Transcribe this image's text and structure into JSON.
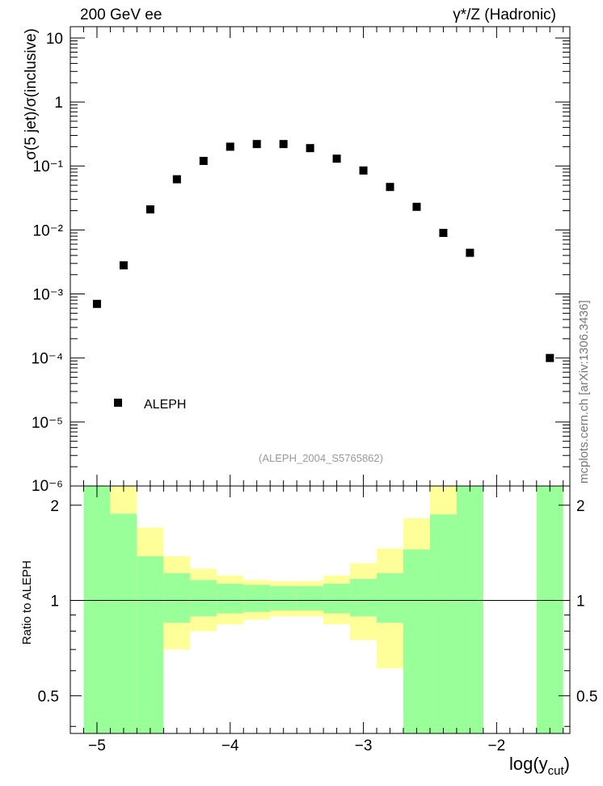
{
  "header": {
    "left": "200 GeV ee",
    "right": "γ*/Z (Hadronic)"
  },
  "side_label": "mcplots.cern.ch [arXiv:1306.3436]",
  "analysis_label": "(ALEPH_2004_S5765862)",
  "chart_data": [
    {
      "type": "scatter",
      "panel": "main",
      "ylabel": "σ(5 jet)/σ(inclusive)",
      "yscale": "log",
      "ylim": [
        1e-06,
        15
      ],
      "xlim": [
        -5.2,
        -1.45
      ],
      "y_ticklabels": [
        "10",
        "1",
        "10⁻¹",
        "10⁻²",
        "10⁻³",
        "10⁻⁴",
        "10⁻⁵",
        "10⁻⁶"
      ],
      "legend": {
        "entries": [
          "ALEPH"
        ],
        "placement": "bottom-left"
      },
      "marker_color": "#000000",
      "series": [
        {
          "name": "ALEPH",
          "x": [
            -5.0,
            -4.8,
            -4.6,
            -4.4,
            -4.2,
            -4.0,
            -3.8,
            -3.6,
            -3.4,
            -3.2,
            -3.0,
            -2.8,
            -2.6,
            -2.4,
            -2.2,
            -1.6
          ],
          "y": [
            0.0007,
            0.0028,
            0.021,
            0.062,
            0.12,
            0.2,
            0.22,
            0.22,
            0.19,
            0.13,
            0.085,
            0.047,
            0.023,
            0.009,
            0.0044,
            0.0001
          ]
        }
      ]
    },
    {
      "type": "area",
      "panel": "ratio",
      "ylabel": "Ratio to ALEPH",
      "xlabel": "log(y_cut)",
      "xlim": [
        -5.2,
        -1.45
      ],
      "ylim": [
        0.38,
        2.3
      ],
      "x_ticklabels": [
        "−5",
        "−4",
        "−3",
        "−2"
      ],
      "y_ticklabels": [
        "0.5",
        "1",
        "2"
      ],
      "reference_line": 1,
      "colors": {
        "inner": "#99ff99",
        "outer": "#ffff99"
      },
      "bins": [
        {
          "lo": -5.1,
          "hi": -4.9,
          "inner": [
            0.3,
            3.0
          ],
          "outer": [
            0.3,
            3.0
          ]
        },
        {
          "lo": -4.9,
          "hi": -4.7,
          "inner": [
            0.3,
            1.88
          ],
          "outer": [
            0.3,
            3.0
          ]
        },
        {
          "lo": -4.7,
          "hi": -4.5,
          "inner": [
            0.3,
            1.38
          ],
          "outer": [
            0.3,
            1.7
          ]
        },
        {
          "lo": -4.5,
          "hi": -4.3,
          "inner": [
            0.85,
            1.22
          ],
          "outer": [
            0.7,
            1.38
          ]
        },
        {
          "lo": -4.3,
          "hi": -4.1,
          "inner": [
            0.89,
            1.16
          ],
          "outer": [
            0.8,
            1.26
          ]
        },
        {
          "lo": -4.1,
          "hi": -3.9,
          "inner": [
            0.91,
            1.13
          ],
          "outer": [
            0.84,
            1.2
          ]
        },
        {
          "lo": -3.9,
          "hi": -3.7,
          "inner": [
            0.92,
            1.12
          ],
          "outer": [
            0.87,
            1.16
          ]
        },
        {
          "lo": -3.7,
          "hi": -3.5,
          "inner": [
            0.93,
            1.11
          ],
          "outer": [
            0.89,
            1.15
          ]
        },
        {
          "lo": -3.5,
          "hi": -3.3,
          "inner": [
            0.93,
            1.11
          ],
          "outer": [
            0.89,
            1.15
          ]
        },
        {
          "lo": -3.3,
          "hi": -3.1,
          "inner": [
            0.91,
            1.13
          ],
          "outer": [
            0.84,
            1.2
          ]
        },
        {
          "lo": -3.1,
          "hi": -2.9,
          "inner": [
            0.89,
            1.17
          ],
          "outer": [
            0.75,
            1.31
          ]
        },
        {
          "lo": -2.9,
          "hi": -2.7,
          "inner": [
            0.85,
            1.22
          ],
          "outer": [
            0.61,
            1.46
          ]
        },
        {
          "lo": -2.7,
          "hi": -2.5,
          "inner": [
            0.3,
            1.45
          ],
          "outer": [
            0.3,
            1.82
          ]
        },
        {
          "lo": -2.5,
          "hi": -2.3,
          "inner": [
            0.3,
            1.87
          ],
          "outer": [
            0.3,
            3.0
          ]
        },
        {
          "lo": -2.3,
          "hi": -2.1,
          "inner": [
            0.3,
            3.0
          ],
          "outer": [
            0.3,
            3.0
          ]
        },
        {
          "lo": -1.7,
          "hi": -1.5,
          "inner": [
            0.3,
            3.0
          ],
          "outer": [
            0.3,
            3.0
          ]
        }
      ]
    }
  ]
}
